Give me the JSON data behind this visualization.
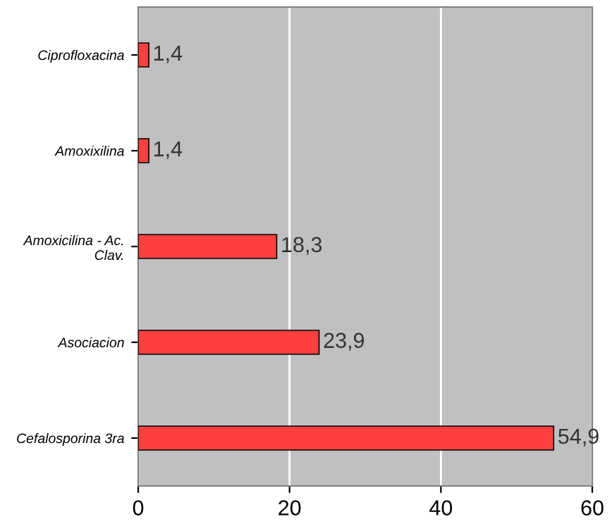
{
  "chart_data": {
    "type": "bar",
    "orientation": "horizontal",
    "categories": [
      "Ciprofloxacina",
      "Amoxixilina",
      "Amoxicilina - Ac.\nClav.",
      "Asociacion",
      "Cefalosporina 3ra"
    ],
    "values": [
      1.4,
      1.4,
      18.3,
      23.9,
      54.9
    ],
    "value_labels": [
      "1,4",
      "1,4",
      "18,3",
      "23,9",
      "54,9"
    ],
    "color": "#ff4040",
    "xlim": [
      0,
      60
    ],
    "xticks": [
      0,
      20,
      40,
      60
    ],
    "grid": "x",
    "legend": false
  }
}
